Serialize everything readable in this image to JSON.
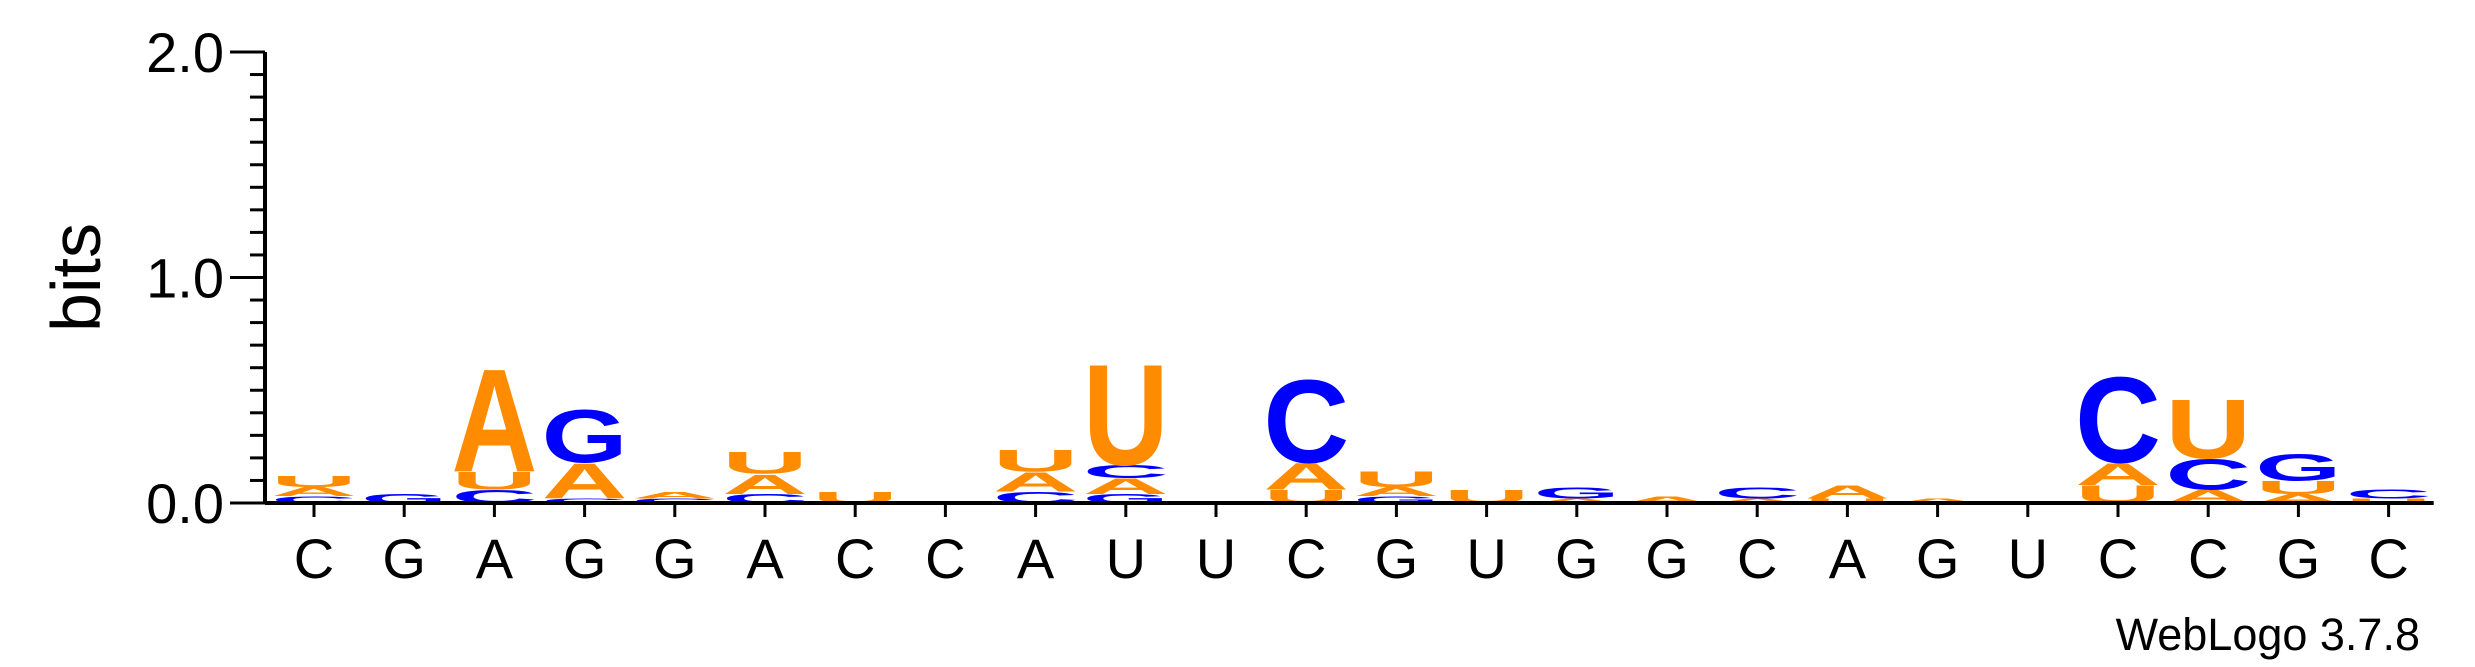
{
  "chart_data": {
    "type": "sequence-logo",
    "ylabel": "bits",
    "ylim": [
      0,
      2.0
    ],
    "yticks": [
      {
        "value": 0.0,
        "label": "0.0"
      },
      {
        "value": 1.0,
        "label": "1.0"
      },
      {
        "value": 2.0,
        "label": "2.0"
      }
    ],
    "colors": {
      "A": "#ff8c00",
      "U": "#ff8c00",
      "C": "#0000ff",
      "G": "#0000ff"
    },
    "positions": [
      {
        "label": "C",
        "stack": [
          [
            "C",
            0.03
          ],
          [
            "A",
            0.04
          ],
          [
            "U",
            0.05
          ]
        ]
      },
      {
        "label": "G",
        "stack": [
          [
            "G",
            0.04
          ]
        ]
      },
      {
        "label": "A",
        "stack": [
          [
            "C",
            0.06
          ],
          [
            "U",
            0.08
          ],
          [
            "A",
            0.47
          ]
        ]
      },
      {
        "label": "G",
        "stack": [
          [
            "C",
            0.02
          ],
          [
            "A",
            0.16
          ],
          [
            "G",
            0.24
          ]
        ]
      },
      {
        "label": "G",
        "stack": [
          [
            "C",
            0.02
          ],
          [
            "A",
            0.03
          ]
        ]
      },
      {
        "label": "A",
        "stack": [
          [
            "C",
            0.04
          ],
          [
            "A",
            0.09
          ],
          [
            "U",
            0.1
          ]
        ]
      },
      {
        "label": "C",
        "stack": [
          [
            "U",
            0.05
          ]
        ]
      },
      {
        "label": "C",
        "stack": []
      },
      {
        "label": "A",
        "stack": [
          [
            "C",
            0.05
          ],
          [
            "A",
            0.09
          ],
          [
            "U",
            0.1
          ]
        ]
      },
      {
        "label": "U",
        "stack": [
          [
            "G",
            0.04
          ],
          [
            "A",
            0.07
          ],
          [
            "C",
            0.06
          ],
          [
            "U",
            0.46
          ]
        ]
      },
      {
        "label": "U",
        "stack": []
      },
      {
        "label": "C",
        "stack": [
          [
            "U",
            0.06
          ],
          [
            "A",
            0.12
          ],
          [
            "C",
            0.38
          ]
        ]
      },
      {
        "label": "G",
        "stack": [
          [
            "G",
            0.03
          ],
          [
            "A",
            0.04
          ],
          [
            "U",
            0.07
          ]
        ]
      },
      {
        "label": "U",
        "stack": [
          [
            "U",
            0.06
          ]
        ]
      },
      {
        "label": "G",
        "stack": [
          [
            "A",
            0.02
          ],
          [
            "G",
            0.05
          ]
        ]
      },
      {
        "label": "G",
        "stack": [
          [
            "A",
            0.03
          ]
        ]
      },
      {
        "label": "C",
        "stack": [
          [
            "A",
            0.02
          ],
          [
            "C",
            0.05
          ]
        ]
      },
      {
        "label": "A",
        "stack": [
          [
            "U",
            0.02
          ],
          [
            "A",
            0.06
          ]
        ]
      },
      {
        "label": "G",
        "stack": [
          [
            "A",
            0.02
          ]
        ]
      },
      {
        "label": "U",
        "stack": []
      },
      {
        "label": "C",
        "stack": [
          [
            "U",
            0.08
          ],
          [
            "A",
            0.1
          ],
          [
            "C",
            0.39
          ]
        ]
      },
      {
        "label": "C",
        "stack": [
          [
            "A",
            0.06
          ],
          [
            "C",
            0.14
          ],
          [
            "U",
            0.27
          ]
        ]
      },
      {
        "label": "G",
        "stack": [
          [
            "A",
            0.04
          ],
          [
            "U",
            0.06
          ],
          [
            "G",
            0.12
          ]
        ]
      },
      {
        "label": "C",
        "stack": [
          [
            "U",
            0.02
          ],
          [
            "C",
            0.04
          ]
        ]
      }
    ]
  },
  "footer": {
    "credit": "WebLogo 3.7.8"
  }
}
